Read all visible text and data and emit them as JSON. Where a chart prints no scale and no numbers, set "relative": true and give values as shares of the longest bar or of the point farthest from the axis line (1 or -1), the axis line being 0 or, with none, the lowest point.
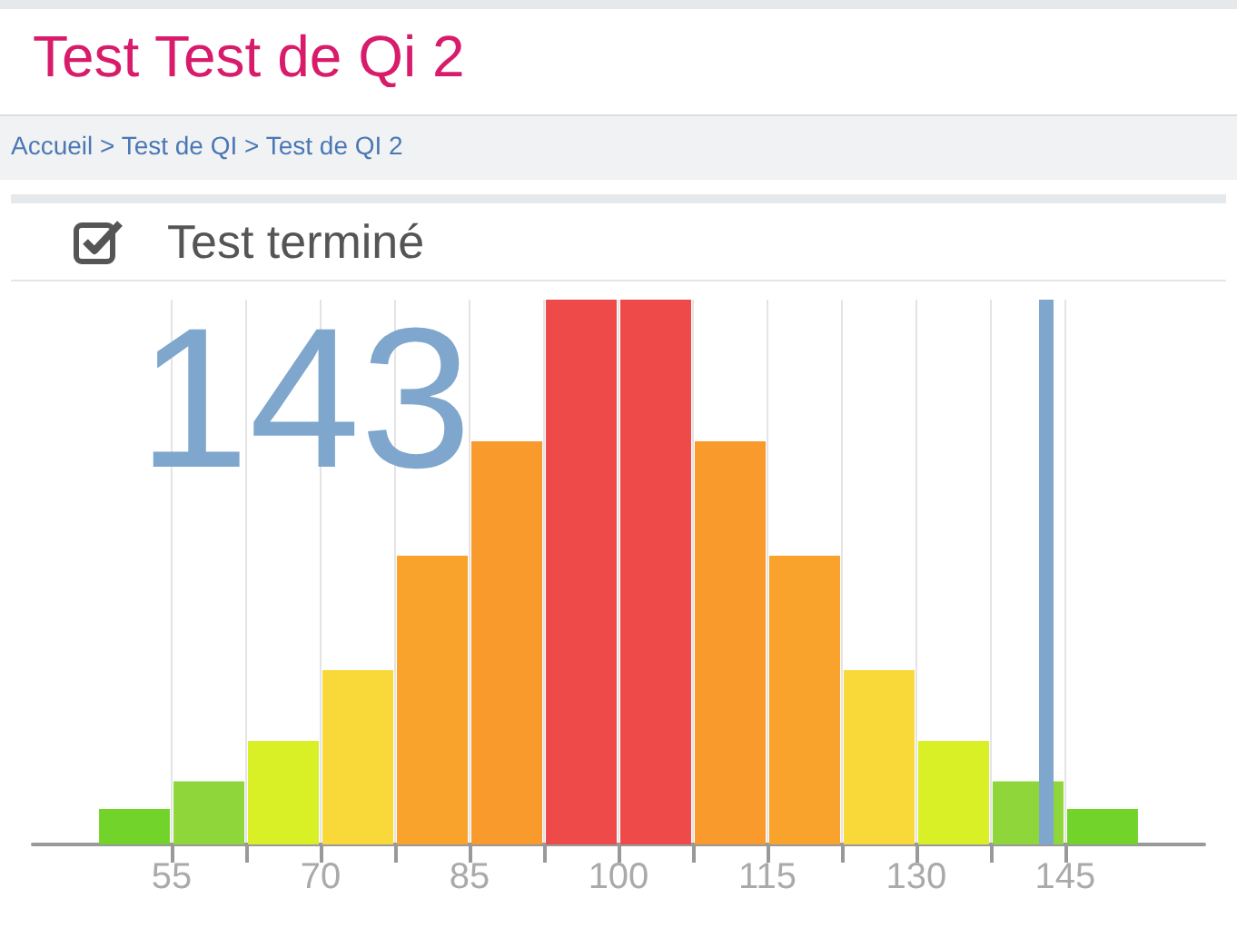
{
  "chart_data": {
    "type": "bar",
    "title": "Test Test de Qi 2",
    "subtitle": "Test terminé",
    "annotations": [
      "Accueil > Test de QI > Test de QI 2",
      "143"
    ],
    "x": [
      51.25,
      58.75,
      66.25,
      73.75,
      81.25,
      88.75,
      96.25,
      103.75,
      111.25,
      118.75,
      126.25,
      133.75,
      141.25,
      148.75
    ],
    "values": [
      0.065,
      0.116,
      0.19,
      0.32,
      0.53,
      0.74,
      1,
      1,
      0.74,
      0.53,
      0.32,
      0.19,
      0.116,
      0.065
    ],
    "colors": [
      "#72d42a",
      "#8fd63a",
      "#d8f025",
      "#f9d93a",
      "#f9a22c",
      "#f99a2c",
      "#ef4a4a",
      "#ef4a4a",
      "#f99a2c",
      "#f9a22c",
      "#f9d93a",
      "#d8f025",
      "#8fd63a",
      "#72d42a"
    ],
    "relative": true,
    "xlim": [
      41,
      159
    ],
    "xticks": [
      55,
      {
        "value": 62.5,
        "label": null
      },
      70,
      {
        "value": 77.5,
        "label": null
      },
      85,
      {
        "value": 92.5,
        "label": null
      },
      100,
      {
        "value": 107.5,
        "label": null
      },
      115,
      {
        "value": 122.5,
        "label": null
      },
      130,
      {
        "value": 137.5,
        "label": null
      },
      145
    ],
    "ref_lines": [
      {
        "axis": "x",
        "value": 143,
        "label": null,
        "color": "#7fa6cc"
      }
    ],
    "grid": "x"
  }
}
